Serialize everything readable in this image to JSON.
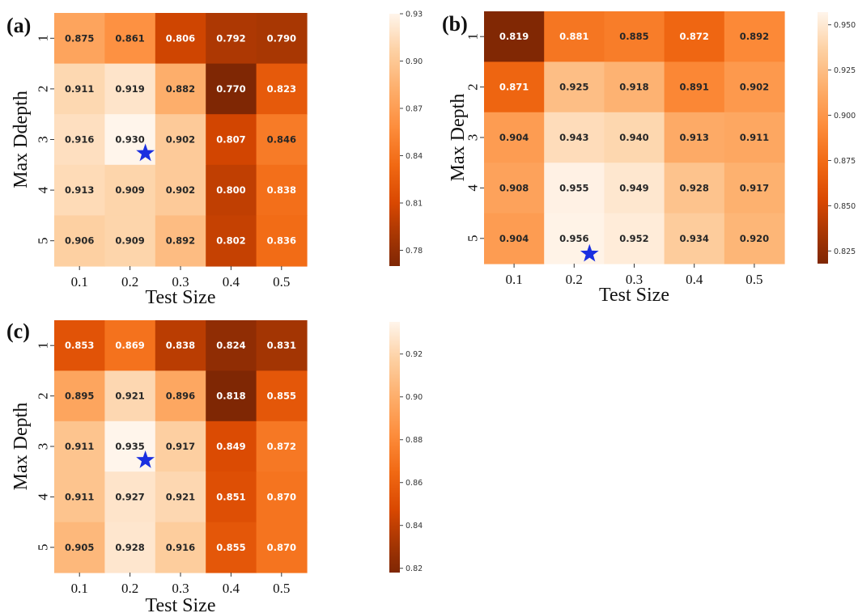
{
  "chart_data": [
    {
      "type": "heatmap",
      "panel_label": "(a)",
      "xlabel": "Test Size",
      "ylabel": "Max Ddepth",
      "x_categories": [
        "0.1",
        "0.2",
        "0.3",
        "0.4",
        "0.5"
      ],
      "y_categories": [
        "1",
        "2",
        "3",
        "4",
        "5"
      ],
      "values": [
        [
          0.875,
          0.861,
          0.806,
          0.792,
          0.79
        ],
        [
          0.911,
          0.919,
          0.882,
          0.77,
          0.823
        ],
        [
          0.916,
          0.93,
          0.902,
          0.807,
          0.846
        ],
        [
          0.913,
          0.909,
          0.902,
          0.8,
          0.838
        ],
        [
          0.906,
          0.909,
          0.892,
          0.802,
          0.836
        ]
      ],
      "value_labels": [
        [
          "0.875",
          "0.861",
          "0.806",
          "0.792",
          "0.790"
        ],
        [
          "0.911",
          "0.919",
          "0.882",
          "0.770",
          "0.823"
        ],
        [
          "0.916",
          "0.930",
          "0.902",
          "0.807",
          "0.846"
        ],
        [
          "0.913",
          "0.909",
          "0.902",
          "0.800",
          "0.838"
        ],
        [
          "0.906",
          "0.909",
          "0.892",
          "0.802",
          "0.836"
        ]
      ],
      "colorbar": {
        "range": [
          0.77,
          0.93
        ],
        "ticks": [
          0.78,
          0.81,
          0.84,
          0.87,
          0.9,
          0.93
        ],
        "tick_labels": [
          "0.78",
          "0.81",
          "0.84",
          "0.87",
          "0.90",
          "0.93"
        ]
      },
      "colormap": "Oranges_r",
      "star_marker": {
        "row": 2,
        "col": 1,
        "color": "#1a2fe0"
      }
    },
    {
      "type": "heatmap",
      "panel_label": "(b)",
      "xlabel": "Test Size",
      "ylabel": "Max Depth",
      "x_categories": [
        "0.1",
        "0.2",
        "0.3",
        "0.4",
        "0.5"
      ],
      "y_categories": [
        "1",
        "2",
        "3",
        "4",
        "5"
      ],
      "values": [
        [
          0.819,
          0.881,
          0.885,
          0.872,
          0.892
        ],
        [
          0.871,
          0.925,
          0.918,
          0.891,
          0.902
        ],
        [
          0.904,
          0.943,
          0.94,
          0.913,
          0.911
        ],
        [
          0.908,
          0.955,
          0.949,
          0.928,
          0.917
        ],
        [
          0.904,
          0.956,
          0.952,
          0.934,
          0.92
        ]
      ],
      "value_labels": [
        [
          "0.819",
          "0.881",
          "0.885",
          "0.872",
          "0.892"
        ],
        [
          "0.871",
          "0.925",
          "0.918",
          "0.891",
          "0.902"
        ],
        [
          "0.904",
          "0.943",
          "0.940",
          "0.913",
          "0.911"
        ],
        [
          "0.908",
          "0.955",
          "0.949",
          "0.928",
          "0.917"
        ],
        [
          "0.904",
          "0.956",
          "0.952",
          "0.934",
          "0.920"
        ]
      ],
      "colorbar": {
        "range": [
          0.818,
          0.957
        ],
        "ticks": [
          0.825,
          0.85,
          0.875,
          0.9,
          0.925,
          0.95
        ],
        "tick_labels": [
          "0.825",
          "0.850",
          "0.875",
          "0.900",
          "0.925",
          "0.950"
        ]
      },
      "colormap": "Oranges_r",
      "star_marker": {
        "row": 4,
        "col": 1,
        "color": "#1a2fe0"
      }
    },
    {
      "type": "heatmap",
      "panel_label": "(c)",
      "xlabel": "Test Size",
      "ylabel": "Max Depth",
      "x_categories": [
        "0.1",
        "0.2",
        "0.3",
        "0.4",
        "0.5"
      ],
      "y_categories": [
        "1",
        "2",
        "3",
        "4",
        "5"
      ],
      "values": [
        [
          0.853,
          0.869,
          0.838,
          0.824,
          0.831
        ],
        [
          0.895,
          0.921,
          0.896,
          0.818,
          0.855
        ],
        [
          0.911,
          0.935,
          0.917,
          0.849,
          0.872
        ],
        [
          0.911,
          0.927,
          0.921,
          0.851,
          0.87
        ],
        [
          0.905,
          0.928,
          0.916,
          0.855,
          0.87
        ]
      ],
      "value_labels": [
        [
          "0.853",
          "0.869",
          "0.838",
          "0.824",
          "0.831"
        ],
        [
          "0.895",
          "0.921",
          "0.896",
          "0.818",
          "0.855"
        ],
        [
          "0.911",
          "0.935",
          "0.917",
          "0.849",
          "0.872"
        ],
        [
          "0.911",
          "0.927",
          "0.921",
          "0.851",
          "0.870"
        ],
        [
          "0.905",
          "0.928",
          "0.916",
          "0.855",
          "0.870"
        ]
      ],
      "colorbar": {
        "range": [
          0.818,
          0.935
        ],
        "ticks": [
          0.82,
          0.84,
          0.86,
          0.88,
          0.9,
          0.92
        ],
        "tick_labels": [
          "0.82",
          "0.84",
          "0.86",
          "0.88",
          "0.90",
          "0.92"
        ]
      },
      "colormap": "Oranges_r",
      "star_marker": {
        "row": 2,
        "col": 1,
        "color": "#1a2fe0"
      }
    }
  ]
}
